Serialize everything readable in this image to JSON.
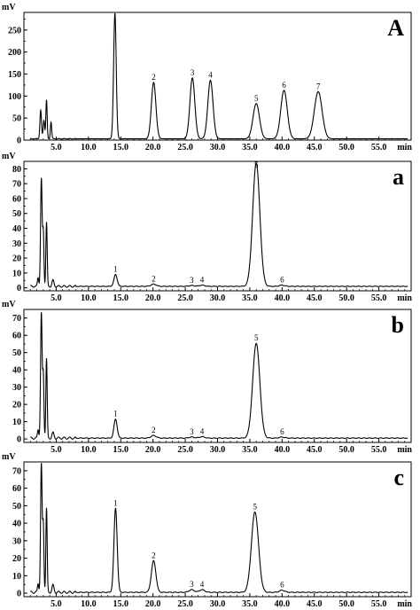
{
  "figure": {
    "panels": [
      {
        "label": "A",
        "ylabel": "mV",
        "xlabel": "min",
        "yticks": [
          "250",
          "200",
          "150",
          "100",
          "50",
          "0"
        ],
        "xticks": [
          "5.0",
          "10.0",
          "15.0",
          "20.0",
          "25.0",
          "30.0",
          "35.0",
          "40.0",
          "45.0",
          "50.0",
          "55.0"
        ],
        "peak_labels": [
          "2",
          "3",
          "4",
          "5",
          "6",
          "7"
        ]
      },
      {
        "label": "a",
        "ylabel": "mV",
        "xlabel": "min",
        "yticks": [
          "80",
          "70",
          "60",
          "50",
          "40",
          "30",
          "20",
          "10",
          "0"
        ],
        "xticks": [
          "5.0",
          "10.0",
          "15.0",
          "20.0",
          "25.0",
          "30.0",
          "35.0",
          "40.0",
          "45.0",
          "50.0",
          "55.0"
        ],
        "peak_labels": [
          "1",
          "2",
          "3",
          "4",
          "5",
          "6"
        ]
      },
      {
        "label": "b",
        "ylabel": "mV",
        "xlabel": "min",
        "yticks": [
          "70",
          "60",
          "50",
          "40",
          "30",
          "20",
          "10",
          "0"
        ],
        "xticks": [
          "5.0",
          "10.0",
          "15.0",
          "20.0",
          "25.0",
          "30.0",
          "35.0",
          "40.0",
          "45.0",
          "50.0",
          "55.0"
        ],
        "peak_labels": [
          "1",
          "2",
          "3",
          "4",
          "5",
          "6"
        ]
      },
      {
        "label": "c",
        "ylabel": "mV",
        "xlabel": "min",
        "yticks": [
          "70",
          "60",
          "50",
          "40",
          "30",
          "20",
          "10",
          "0"
        ],
        "xticks": [
          "5.0",
          "10.0",
          "15.0",
          "20.0",
          "25.0",
          "30.0",
          "35.0",
          "40.0",
          "45.0",
          "50.0",
          "55.0"
        ],
        "peak_labels": [
          "1",
          "2",
          "3",
          "4",
          "5",
          "6"
        ]
      }
    ]
  },
  "chart_data": [
    {
      "type": "line",
      "panel": "A",
      "xlabel": "min",
      "ylabel": "mV",
      "xlim": [
        0,
        60
      ],
      "ylim": [
        0,
        290
      ],
      "grid": false,
      "baseline": 3,
      "peaks": [
        {
          "label": "",
          "rt": 2.6,
          "height": 65,
          "width": 0.12
        },
        {
          "label": "",
          "rt": 3.1,
          "height": 42,
          "width": 0.12
        },
        {
          "label": "",
          "rt": 3.5,
          "height": 88,
          "width": 0.1
        },
        {
          "label": "",
          "rt": 4.2,
          "height": 38,
          "width": 0.1
        },
        {
          "label": "",
          "rt": 14.1,
          "height": 285,
          "width": 0.2
        },
        {
          "label": "2",
          "rt": 20.1,
          "height": 128,
          "width": 0.35
        },
        {
          "label": "3",
          "rt": 26.1,
          "height": 138,
          "width": 0.38
        },
        {
          "label": "4",
          "rt": 28.9,
          "height": 133,
          "width": 0.4
        },
        {
          "label": "5",
          "rt": 36.0,
          "height": 80,
          "width": 0.5
        },
        {
          "label": "6",
          "rt": 40.3,
          "height": 110,
          "width": 0.5
        },
        {
          "label": "7",
          "rt": 45.6,
          "height": 107,
          "width": 0.6
        }
      ]
    },
    {
      "type": "line",
      "panel": "a",
      "xlabel": "min",
      "ylabel": "mV",
      "xlim": [
        0,
        60
      ],
      "ylim": [
        -2,
        85
      ],
      "grid": false,
      "baseline": 1,
      "peaks": [
        {
          "label": "",
          "rt": 2.2,
          "height": 6,
          "width": 0.1
        },
        {
          "label": "",
          "rt": 2.7,
          "height": 72,
          "width": 0.12
        },
        {
          "label": "",
          "rt": 3.0,
          "height": 36,
          "width": 0.1
        },
        {
          "label": "",
          "rt": 3.5,
          "height": 43,
          "width": 0.1
        },
        {
          "label": "",
          "rt": 4.5,
          "height": 4,
          "width": 0.15
        },
        {
          "label": "1",
          "rt": 14.2,
          "height": 8,
          "width": 0.25
        },
        {
          "label": "2",
          "rt": 20.1,
          "height": 1.5,
          "width": 0.4
        },
        {
          "label": "3",
          "rt": 26.0,
          "height": 0.6,
          "width": 0.4
        },
        {
          "label": "4",
          "rt": 27.6,
          "height": 0.8,
          "width": 0.4
        },
        {
          "label": "5",
          "rt": 36.0,
          "height": 83,
          "width": 0.55
        },
        {
          "label": "6",
          "rt": 40.0,
          "height": 0.8,
          "width": 0.4
        }
      ]
    },
    {
      "type": "line",
      "panel": "b",
      "xlabel": "min",
      "ylabel": "mV",
      "xlim": [
        0,
        60
      ],
      "ylim": [
        -2,
        75
      ],
      "grid": false,
      "baseline": 0.5,
      "peaks": [
        {
          "label": "",
          "rt": 2.2,
          "height": 5,
          "width": 0.1
        },
        {
          "label": "",
          "rt": 2.7,
          "height": 72,
          "width": 0.12
        },
        {
          "label": "",
          "rt": 3.0,
          "height": 36,
          "width": 0.1
        },
        {
          "label": "",
          "rt": 3.5,
          "height": 46,
          "width": 0.1
        },
        {
          "label": "",
          "rt": 4.5,
          "height": 3,
          "width": 0.15
        },
        {
          "label": "1",
          "rt": 14.2,
          "height": 11,
          "width": 0.25
        },
        {
          "label": "2",
          "rt": 20.1,
          "height": 1.5,
          "width": 0.4
        },
        {
          "label": "3",
          "rt": 26.0,
          "height": 0.6,
          "width": 0.4
        },
        {
          "label": "4",
          "rt": 27.6,
          "height": 0.8,
          "width": 0.4
        },
        {
          "label": "5",
          "rt": 36.0,
          "height": 55,
          "width": 0.55
        },
        {
          "label": "6",
          "rt": 40.0,
          "height": 0.6,
          "width": 0.4
        }
      ]
    },
    {
      "type": "line",
      "panel": "c",
      "xlabel": "min",
      "ylabel": "mV",
      "xlim": [
        0,
        60
      ],
      "ylim": [
        -2,
        75
      ],
      "grid": false,
      "baseline": 0.5,
      "peaks": [
        {
          "label": "",
          "rt": 2.2,
          "height": 5,
          "width": 0.1
        },
        {
          "label": "",
          "rt": 2.7,
          "height": 73,
          "width": 0.12
        },
        {
          "label": "",
          "rt": 3.0,
          "height": 38,
          "width": 0.1
        },
        {
          "label": "",
          "rt": 3.5,
          "height": 48,
          "width": 0.1
        },
        {
          "label": "",
          "rt": 4.5,
          "height": 4,
          "width": 0.15
        },
        {
          "label": "1",
          "rt": 14.2,
          "height": 48,
          "width": 0.25
        },
        {
          "label": "2",
          "rt": 20.1,
          "height": 18,
          "width": 0.35
        },
        {
          "label": "3",
          "rt": 26.0,
          "height": 1.5,
          "width": 0.4
        },
        {
          "label": "4",
          "rt": 27.6,
          "height": 1.5,
          "width": 0.4
        },
        {
          "label": "5",
          "rt": 35.8,
          "height": 46,
          "width": 0.55
        },
        {
          "label": "6",
          "rt": 40.0,
          "height": 1.2,
          "width": 0.4
        }
      ]
    }
  ]
}
